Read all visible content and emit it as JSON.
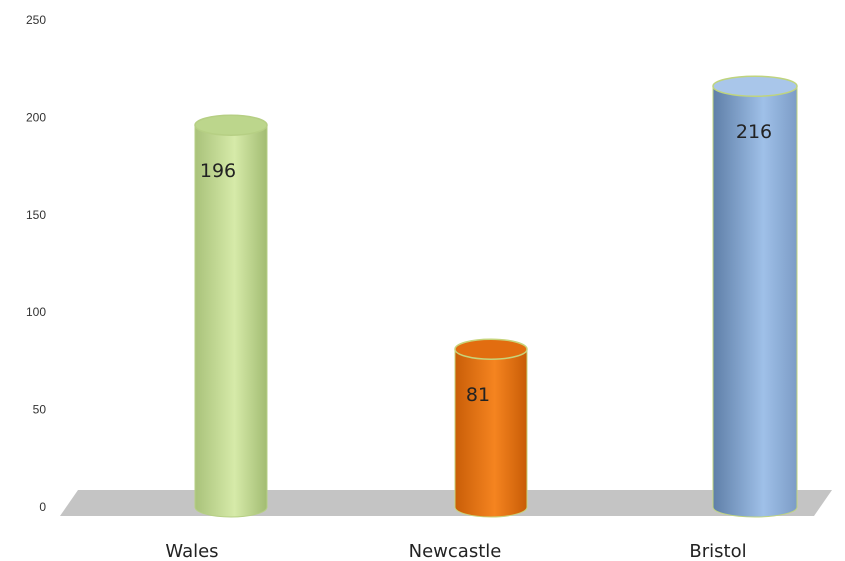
{
  "chart_data": {
    "type": "bar",
    "style": "3d-cylinder",
    "categories": [
      "Wales",
      "Newcastle",
      "Bristol"
    ],
    "values": [
      196,
      81,
      216
    ],
    "data_labels": [
      "196",
      "81",
      "216"
    ],
    "ylim": [
      0,
      250
    ],
    "yticks": [
      "0",
      "50",
      "100",
      "150",
      "200",
      "250"
    ],
    "grid": false,
    "legend": "none",
    "colors": {
      "Wales": "#c6df9a",
      "Newcastle": "#f07c1a",
      "Bristol": "#8fb2dc",
      "floor": "#c4c4c4"
    }
  }
}
